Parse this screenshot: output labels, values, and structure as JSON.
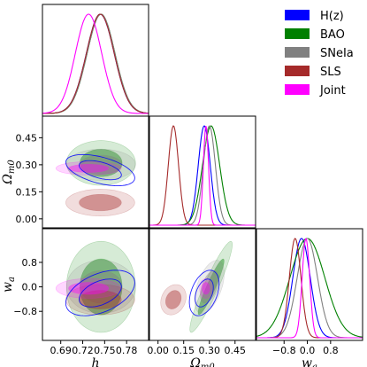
{
  "chart_data": {
    "type": "triangle",
    "parameters": [
      {
        "key": "h",
        "label": "h",
        "ticks": [
          0.69,
          0.72,
          0.75,
          0.78
        ],
        "tick_labels": [
          "0.69",
          "0.72",
          "0.75",
          "0.78"
        ],
        "range": [
          0.665,
          0.81
        ]
      },
      {
        "key": "Om",
        "label": "Ω",
        "label_sub": "m0",
        "ticks": [
          0.0,
          0.15,
          0.3,
          0.45
        ],
        "tick_labels": [
          "0.00",
          "0.15",
          "0.30",
          "0.45"
        ],
        "range": [
          -0.05,
          0.57
        ]
      },
      {
        "key": "wa",
        "label": "w",
        "label_sub": "a",
        "ticks": [
          -0.8,
          0.0,
          0.8
        ],
        "tick_labels": [
          "−0.8",
          "0.0",
          "0.8"
        ],
        "range": [
          -1.75,
          1.9
        ]
      }
    ],
    "datasets": [
      {
        "name": "H(z)",
        "color": "#0000ff",
        "fill": false,
        "mean": {
          "h": 0.744,
          "Om": 0.27,
          "wa": -0.2
        },
        "sigma": {
          "h": 0.019,
          "Om": 0.035,
          "wa": 0.3
        },
        "corr": {
          "h_Om": -0.5,
          "h_wa": 0.45,
          "Om_wa": 0.4
        }
      },
      {
        "name": "BAO",
        "color": "#008000",
        "fill": true,
        "mean": {
          "h": 0.745,
          "Om": 0.31,
          "wa": 0.0
        },
        "sigma": {
          "h": 0.019,
          "Om": 0.05,
          "wa": 0.6
        },
        "corr": {
          "h_Om": 0.0,
          "h_wa": 0.0,
          "Om_wa": 0.93
        }
      },
      {
        "name": "SNeIa",
        "color": "#808080",
        "fill": true,
        "mean": {
          "h": 0.745,
          "Om": 0.3,
          "wa": 0.0
        },
        "sigma": {
          "h": 0.019,
          "Om": 0.035,
          "wa": 0.35
        },
        "corr": {
          "h_Om": 0.0,
          "h_wa": 0.0,
          "Om_wa": 0.5
        }
      },
      {
        "name": "SLS",
        "color": "#a52a2a",
        "fill": true,
        "mean": {
          "h": 0.744,
          "Om": 0.09,
          "wa": -0.42
        },
        "sigma": {
          "h": 0.019,
          "Om": 0.03,
          "wa": 0.2
        },
        "corr": {
          "h_Om": 0.0,
          "h_wa": 0.0,
          "Om_wa": 0.2
        }
      },
      {
        "name": "Joint",
        "color": "#ff00ff",
        "fill": true,
        "mean": {
          "h": 0.728,
          "Om": 0.28,
          "wa": -0.05
        },
        "sigma": {
          "h": 0.018,
          "Om": 0.015,
          "wa": 0.13
        },
        "corr": {
          "h_Om": 0.0,
          "h_wa": 0.0,
          "Om_wa": 0.0
        }
      }
    ],
    "grid": false,
    "legend_position": "top-right"
  }
}
